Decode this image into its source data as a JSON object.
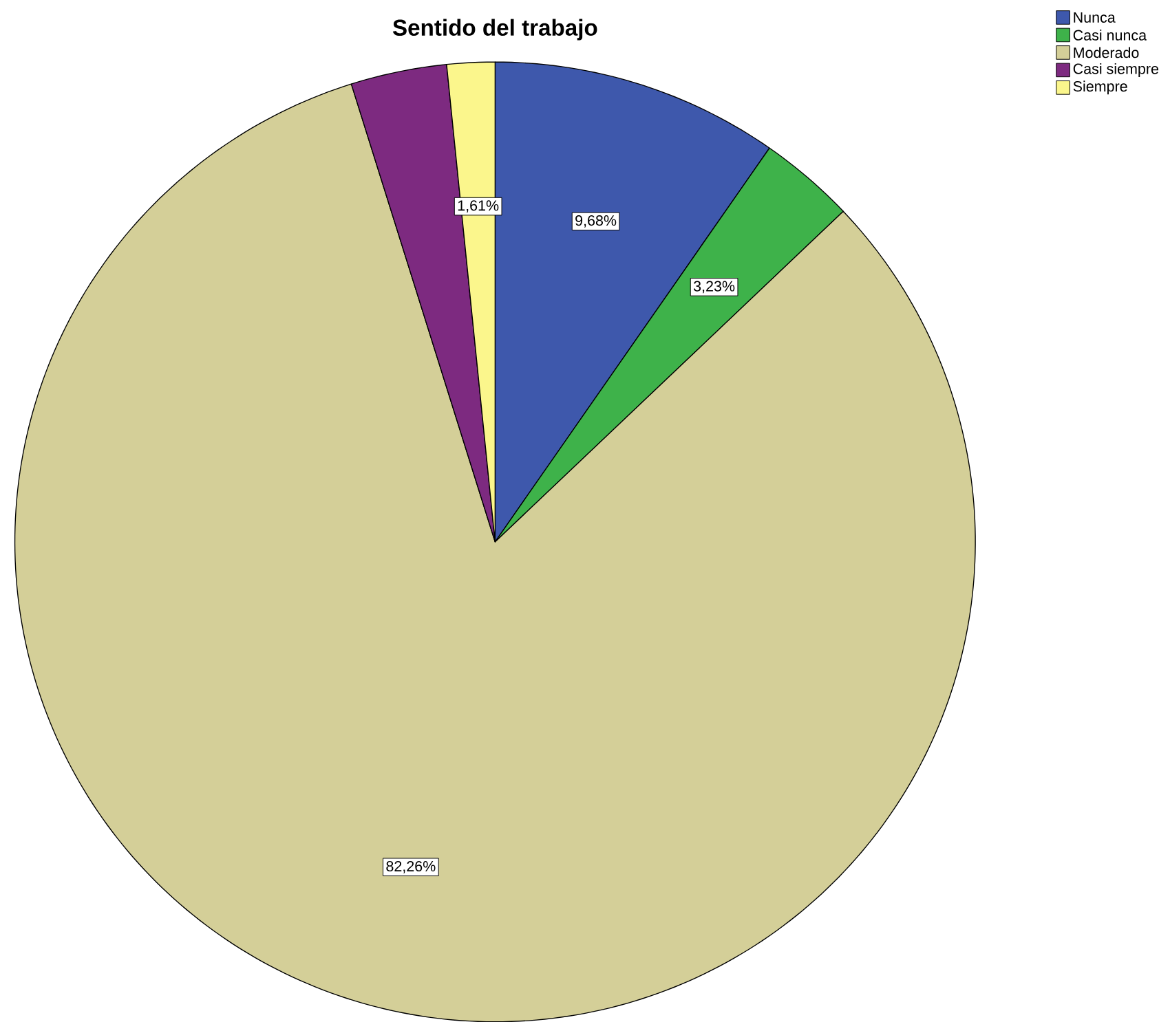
{
  "chart_data": {
    "type": "pie",
    "title": "Sentido del trabajo",
    "categories": [
      "Nunca",
      "Casi nunca",
      "Moderado",
      "Casi siempre",
      "Siempre"
    ],
    "values": [
      9.68,
      3.23,
      82.26,
      3.23,
      1.61
    ],
    "value_labels": [
      "9,68%",
      "3,23%",
      "82,26%",
      null,
      "1,61%"
    ],
    "colors": [
      "#3e58ac",
      "#3eb24a",
      "#d4cf98",
      "#7d2a80",
      "#fbf68c"
    ],
    "legend": "top right"
  }
}
